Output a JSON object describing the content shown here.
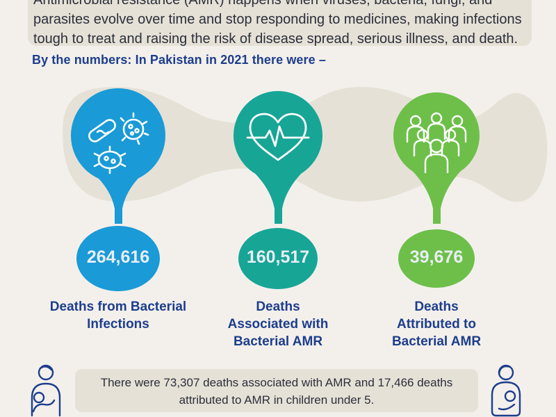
{
  "intro": {
    "text": "Antimicrobial resistance (AMR) happens when viruses, bacteria, fungi, and\nparasites evolve over time and stop responding to medicines, making infections\ntough to treat and raising the risk of disease spread, serious illness, and death."
  },
  "heading": "By the numbers: In Pakistan in 2021 there were –",
  "stats": [
    {
      "value": "264,616",
      "label": "Deaths from Bacterial\nInfections",
      "color": "#1a9ad6",
      "icon": "bacteria-icon"
    },
    {
      "value": "160,517",
      "label": "Deaths\nAssociated with\nBacterial AMR",
      "color": "#17a596",
      "icon": "heartbeat-icon"
    },
    {
      "value": "39,676",
      "label": "Deaths\nAttributed to\nBacterial AMR",
      "color": "#6dbf4a",
      "icon": "people-group-icon"
    }
  ],
  "note": {
    "text": "There were 73,307 deaths associated with AMR and 17,466 deaths\nattributed to AMR in children under 5."
  },
  "colors": {
    "band": "#e6e1d6",
    "heading": "#1d3d8c",
    "background": "#f3f0ec"
  }
}
